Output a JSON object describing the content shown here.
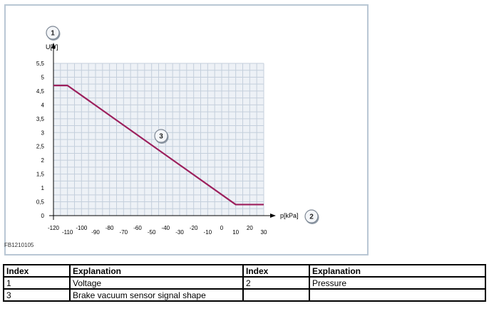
{
  "chart_data": {
    "type": "line",
    "title": "",
    "xlabel": "p[kPa]",
    "ylabel": "U[V]",
    "xlim": [
      -120,
      30
    ],
    "ylim": [
      0,
      5.5
    ],
    "grid": true,
    "x_ticks": [
      "-120",
      "-110",
      "-100",
      "-90",
      "-80",
      "-70",
      "-60",
      "-50",
      "-40",
      "-30",
      "-20",
      "-10",
      "0",
      "10",
      "20",
      "30"
    ],
    "y_ticks": [
      "0",
      "0,5",
      "1",
      "1,5",
      "2",
      "2,5",
      "3",
      "3,5",
      "4",
      "4,5",
      "5",
      "5,5"
    ],
    "series": [
      {
        "x": [
          -120,
          -110,
          10,
          30
        ],
        "y": [
          4.7,
          4.7,
          0.4,
          0.4
        ],
        "color": "#9c1f5c"
      }
    ],
    "callouts": [
      {
        "label": "1",
        "target": "y-axis"
      },
      {
        "label": "2",
        "target": "x-axis"
      },
      {
        "label": "3",
        "target": "curve"
      }
    ],
    "figure_code": "FB1210105"
  },
  "legend": {
    "headers": [
      "Index",
      "Explanation",
      "Index",
      "Explanation"
    ],
    "rows": [
      [
        "1",
        "Voltage",
        "2",
        "Pressure"
      ],
      [
        "3",
        "Brake vacuum sensor signal shape",
        "",
        ""
      ]
    ]
  }
}
